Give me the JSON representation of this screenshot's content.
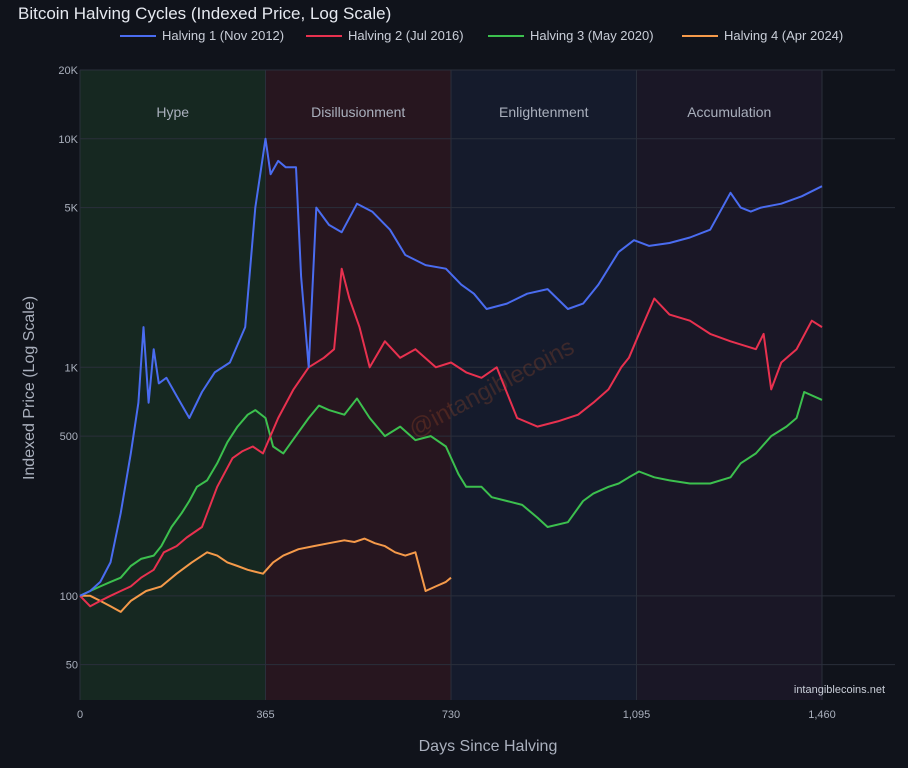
{
  "chart_data": {
    "type": "line",
    "title": "Bitcoin Halving Cycles (Indexed Price, Log Scale)",
    "xlabel": "Days Since Halving",
    "ylabel": "Indexed Price (Log Scale)",
    "xlim": [
      0,
      1500
    ],
    "ylim": [
      35,
      20000
    ],
    "yscale": "log",
    "x_ticks": [
      0,
      365,
      730,
      1095,
      1460
    ],
    "x_tick_labels": [
      "0",
      "365",
      "730",
      "1,095",
      "1,460"
    ],
    "y_ticks": [
      50,
      100,
      500,
      1000,
      5000,
      10000,
      20000
    ],
    "y_tick_labels": [
      "50",
      "100",
      "500",
      "1K",
      "5K",
      "10K",
      "20K"
    ],
    "grid": true,
    "legend_position": "top",
    "phases": [
      {
        "label": "Hype",
        "start": 0,
        "end": 365,
        "color": "#1c3b26"
      },
      {
        "label": "Disillusionment",
        "start": 365,
        "end": 730,
        "color": "#3a1a22"
      },
      {
        "label": "Enlightenment",
        "start": 730,
        "end": 1095,
        "color": "#19233a"
      },
      {
        "label": "Accumulation",
        "start": 1095,
        "end": 1460,
        "color": "#221c30"
      }
    ],
    "series": [
      {
        "name": "Halving 1 (Nov 2012)",
        "color": "#4a6cf0",
        "x": [
          0,
          20,
          40,
          60,
          80,
          100,
          115,
          125,
          135,
          145,
          155,
          170,
          190,
          215,
          240,
          265,
          295,
          325,
          345,
          365,
          375,
          390,
          405,
          425,
          435,
          450,
          465,
          490,
          515,
          545,
          575,
          610,
          640,
          680,
          720,
          750,
          775,
          800,
          840,
          880,
          920,
          960,
          990,
          1020,
          1060,
          1090,
          1120,
          1160,
          1200,
          1240,
          1280,
          1300,
          1320,
          1340,
          1380,
          1420,
          1460
        ],
        "y": [
          100,
          105,
          115,
          140,
          230,
          420,
          700,
          1500,
          700,
          1200,
          850,
          900,
          750,
          600,
          780,
          950,
          1050,
          1500,
          5000,
          10000,
          7000,
          8000,
          7500,
          7500,
          2500,
          1000,
          5000,
          4200,
          3900,
          5200,
          4800,
          4000,
          3100,
          2800,
          2700,
          2300,
          2100,
          1800,
          1900,
          2100,
          2200,
          1800,
          1900,
          2300,
          3200,
          3600,
          3400,
          3500,
          3700,
          4000,
          5800,
          5000,
          4800,
          5000,
          5200,
          5600,
          6200
        ]
      },
      {
        "name": "Halving 2 (Jul 2016)",
        "color": "#e8314f",
        "x": [
          0,
          20,
          40,
          60,
          80,
          100,
          120,
          145,
          165,
          190,
          210,
          240,
          270,
          300,
          320,
          340,
          360,
          390,
          420,
          450,
          480,
          500,
          515,
          530,
          550,
          570,
          600,
          630,
          660,
          700,
          730,
          760,
          790,
          820,
          860,
          900,
          940,
          980,
          1010,
          1040,
          1065,
          1080,
          1100,
          1130,
          1160,
          1200,
          1240,
          1280,
          1330,
          1345,
          1360,
          1380,
          1410,
          1440,
          1460
        ],
        "y": [
          100,
          90,
          95,
          100,
          105,
          110,
          120,
          130,
          155,
          165,
          180,
          200,
          300,
          400,
          430,
          450,
          420,
          600,
          800,
          1000,
          1100,
          1200,
          2700,
          2000,
          1500,
          1000,
          1300,
          1100,
          1200,
          1000,
          1050,
          950,
          900,
          1000,
          600,
          550,
          580,
          620,
          700,
          800,
          1000,
          1100,
          1400,
          2000,
          1700,
          1600,
          1400,
          1300,
          1200,
          1400,
          800,
          1050,
          1200,
          1600,
          1500
        ]
      },
      {
        "name": "Halving 3 (May 2020)",
        "color": "#3cc04e",
        "x": [
          0,
          20,
          40,
          60,
          80,
          100,
          120,
          145,
          160,
          180,
          200,
          215,
          230,
          250,
          270,
          290,
          310,
          330,
          345,
          365,
          380,
          400,
          430,
          450,
          470,
          490,
          520,
          545,
          570,
          600,
          630,
          660,
          690,
          720,
          745,
          760,
          790,
          810,
          840,
          870,
          900,
          920,
          960,
          990,
          1010,
          1040,
          1060,
          1080,
          1100,
          1130,
          1160,
          1200,
          1240,
          1280,
          1300,
          1330,
          1360,
          1390,
          1410,
          1425,
          1460
        ],
        "y": [
          100,
          105,
          110,
          115,
          120,
          135,
          145,
          150,
          165,
          200,
          230,
          260,
          300,
          320,
          380,
          470,
          550,
          620,
          650,
          600,
          450,
          420,
          520,
          600,
          680,
          650,
          620,
          730,
          600,
          500,
          550,
          480,
          500,
          450,
          340,
          300,
          300,
          270,
          260,
          250,
          220,
          200,
          210,
          260,
          280,
          300,
          310,
          330,
          350,
          330,
          320,
          310,
          310,
          330,
          380,
          420,
          500,
          550,
          600,
          780,
          720
        ]
      },
      {
        "name": "Halving 4 (Apr 2024)",
        "color": "#f59a4a",
        "x": [
          0,
          20,
          40,
          60,
          80,
          100,
          130,
          160,
          190,
          220,
          250,
          270,
          290,
          310,
          330,
          360,
          380,
          400,
          430,
          460,
          490,
          520,
          540,
          560,
          580,
          600,
          620,
          640,
          660,
          680,
          700,
          720,
          730
        ],
        "y": [
          100,
          100,
          95,
          90,
          85,
          95,
          105,
          110,
          125,
          140,
          155,
          150,
          140,
          135,
          130,
          125,
          140,
          150,
          160,
          165,
          170,
          175,
          172,
          178,
          170,
          165,
          155,
          150,
          155,
          105,
          110,
          115,
          120
        ]
      }
    ],
    "annotations": {
      "watermark": "@intangiblecoins",
      "credit": "intangiblecoins.net"
    }
  }
}
